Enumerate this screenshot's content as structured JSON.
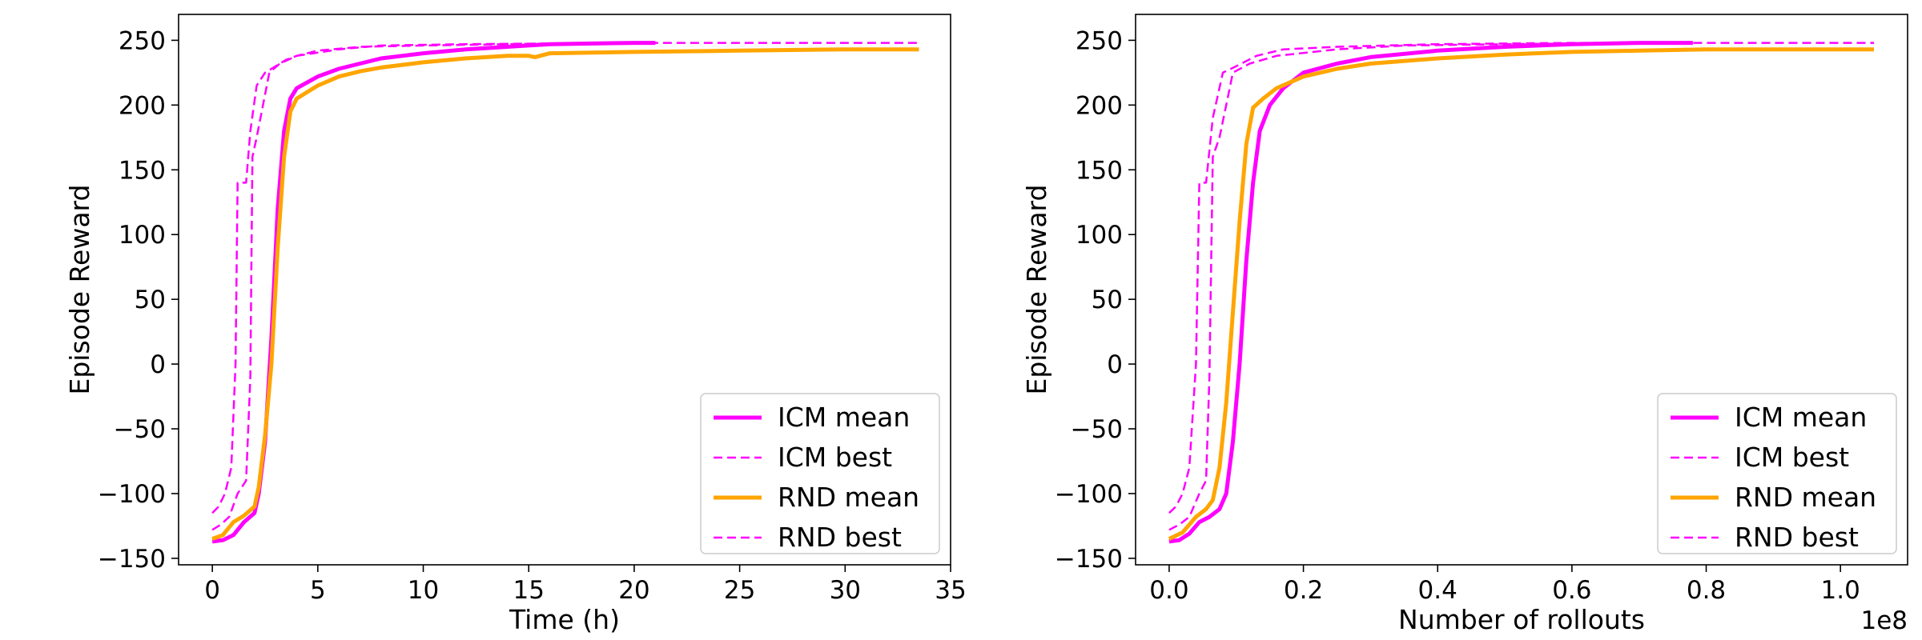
{
  "chart_data": [
    {
      "type": "line",
      "xlabel": "Time (h)",
      "ylabel": "Episode Reward",
      "xlim": [
        -1.6,
        35
      ],
      "ylim": [
        -155,
        270
      ],
      "xticks": [
        0,
        5,
        10,
        15,
        20,
        25,
        30,
        35
      ],
      "xtick_labels": [
        "0",
        "5",
        "10",
        "15",
        "20",
        "25",
        "30",
        "35"
      ],
      "yticks": [
        -150,
        -100,
        -50,
        0,
        50,
        100,
        150,
        200,
        250
      ],
      "ytick_labels": [
        "−150",
        "−100",
        "−50",
        "0",
        "50",
        "100",
        "150",
        "200",
        "250"
      ],
      "x_offset_label": "",
      "grid": false,
      "legend_position": "lower-right",
      "series": [
        {
          "name": "ICM mean",
          "color": "#ff00ff",
          "style": "solid",
          "width": 5,
          "points": [
            [
              0,
              -137
            ],
            [
              0.5,
              -136
            ],
            [
              1,
              -132
            ],
            [
              1.5,
              -122
            ],
            [
              2,
              -115
            ],
            [
              2.2,
              -100
            ],
            [
              2.5,
              -60
            ],
            [
              2.8,
              20
            ],
            [
              3.1,
              120
            ],
            [
              3.4,
              180
            ],
            [
              3.7,
              205
            ],
            [
              4,
              213
            ],
            [
              5,
              222
            ],
            [
              6,
              228
            ],
            [
              7,
              232
            ],
            [
              8,
              236
            ],
            [
              10,
              240
            ],
            [
              12,
              243
            ],
            [
              14,
              245
            ],
            [
              16,
              247
            ],
            [
              18,
              247.5
            ],
            [
              20,
              248
            ],
            [
              21,
              248
            ]
          ]
        },
        {
          "name": "ICM best",
          "color": "#ff00ff",
          "style": "dashed",
          "width": 2.5,
          "points": [
            [
              0,
              -115
            ],
            [
              0.3,
              -110
            ],
            [
              0.6,
              -100
            ],
            [
              0.9,
              -80
            ],
            [
              1.1,
              0
            ],
            [
              1.2,
              140
            ],
            [
              1.6,
              140
            ],
            [
              1.8,
              180
            ],
            [
              2.1,
              215
            ],
            [
              2.5,
              225
            ],
            [
              3,
              230
            ],
            [
              3.5,
              235
            ],
            [
              4,
              238
            ],
            [
              5,
              242
            ],
            [
              7,
              245
            ],
            [
              10,
              246
            ],
            [
              14,
              247
            ],
            [
              18,
              248
            ],
            [
              21,
              248
            ]
          ]
        },
        {
          "name": "RND mean",
          "color": "#ffa500",
          "style": "solid",
          "width": 5,
          "points": [
            [
              0,
              -135
            ],
            [
              0.5,
              -132
            ],
            [
              1,
              -122
            ],
            [
              1.5,
              -117
            ],
            [
              2,
              -110
            ],
            [
              2.2,
              -95
            ],
            [
              2.5,
              -55
            ],
            [
              2.8,
              0
            ],
            [
              3.1,
              90
            ],
            [
              3.4,
              160
            ],
            [
              3.7,
              195
            ],
            [
              4,
              205
            ],
            [
              5,
              215
            ],
            [
              6,
              222
            ],
            [
              7,
              226
            ],
            [
              8,
              229
            ],
            [
              10,
              233
            ],
            [
              12,
              236
            ],
            [
              14,
              238
            ],
            [
              15,
              238
            ],
            [
              15.3,
              237
            ],
            [
              16,
              240
            ],
            [
              20,
              241
            ],
            [
              25,
              242
            ],
            [
              30,
              243
            ],
            [
              33.5,
              243
            ]
          ]
        },
        {
          "name": "RND best",
          "color": "#ff00ff",
          "style": "dashed",
          "width": 2.5,
          "points": [
            [
              0,
              -128
            ],
            [
              0.4,
              -124
            ],
            [
              0.8,
              -118
            ],
            [
              1.2,
              -100
            ],
            [
              1.6,
              -90
            ],
            [
              1.8,
              -10
            ],
            [
              1.9,
              160
            ],
            [
              2.1,
              175
            ],
            [
              2.4,
              200
            ],
            [
              2.7,
              225
            ],
            [
              3.2,
              232
            ],
            [
              4,
              238
            ],
            [
              6,
              243
            ],
            [
              8,
              246
            ],
            [
              12,
              247
            ],
            [
              20,
              248
            ],
            [
              33.5,
              248
            ]
          ]
        }
      ]
    },
    {
      "type": "line",
      "xlabel": "Number of rollouts",
      "ylabel": "Episode Reward",
      "xlim": [
        -0.05,
        1.1
      ],
      "ylim": [
        -155,
        270
      ],
      "xticks": [
        0,
        0.2,
        0.4,
        0.6,
        0.8,
        1.0
      ],
      "xtick_labels": [
        "0.0",
        "0.2",
        "0.4",
        "0.6",
        "0.8",
        "1.0"
      ],
      "yticks": [
        -150,
        -100,
        -50,
        0,
        50,
        100,
        150,
        200,
        250
      ],
      "ytick_labels": [
        "−150",
        "−100",
        "−50",
        "0",
        "50",
        "100",
        "150",
        "200",
        "250"
      ],
      "x_offset_label": "1e8",
      "grid": false,
      "legend_position": "lower-right",
      "series": [
        {
          "name": "ICM mean",
          "color": "#ff00ff",
          "style": "solid",
          "width": 5,
          "points": [
            [
              0,
              -137
            ],
            [
              0.015,
              -136
            ],
            [
              0.03,
              -131
            ],
            [
              0.045,
              -122
            ],
            [
              0.06,
              -118
            ],
            [
              0.075,
              -112
            ],
            [
              0.085,
              -100
            ],
            [
              0.095,
              -60
            ],
            [
              0.105,
              0
            ],
            [
              0.115,
              80
            ],
            [
              0.125,
              140
            ],
            [
              0.135,
              180
            ],
            [
              0.15,
              200
            ],
            [
              0.17,
              213
            ],
            [
              0.2,
              225
            ],
            [
              0.25,
              232
            ],
            [
              0.3,
              237
            ],
            [
              0.4,
              242
            ],
            [
              0.5,
              245
            ],
            [
              0.6,
              247
            ],
            [
              0.7,
              248
            ],
            [
              0.78,
              248
            ]
          ]
        },
        {
          "name": "ICM best",
          "color": "#ff00ff",
          "style": "dashed",
          "width": 2.5,
          "points": [
            [
              0,
              -115
            ],
            [
              0.01,
              -110
            ],
            [
              0.02,
              -100
            ],
            [
              0.03,
              -80
            ],
            [
              0.04,
              0
            ],
            [
              0.045,
              140
            ],
            [
              0.055,
              140
            ],
            [
              0.065,
              190
            ],
            [
              0.08,
              225
            ],
            [
              0.1,
              230
            ],
            [
              0.13,
              238
            ],
            [
              0.17,
              243
            ],
            [
              0.25,
              245
            ],
            [
              0.4,
              247
            ],
            [
              0.6,
              248
            ],
            [
              0.78,
              248
            ]
          ]
        },
        {
          "name": "RND mean",
          "color": "#ffa500",
          "style": "solid",
          "width": 5,
          "points": [
            [
              0,
              -135
            ],
            [
              0.02,
              -130
            ],
            [
              0.04,
              -118
            ],
            [
              0.055,
              -112
            ],
            [
              0.065,
              -105
            ],
            [
              0.075,
              -80
            ],
            [
              0.085,
              -30
            ],
            [
              0.095,
              40
            ],
            [
              0.105,
              110
            ],
            [
              0.115,
              170
            ],
            [
              0.125,
              198
            ],
            [
              0.14,
              205
            ],
            [
              0.16,
              213
            ],
            [
              0.2,
              222
            ],
            [
              0.25,
              228
            ],
            [
              0.3,
              232
            ],
            [
              0.4,
              236
            ],
            [
              0.5,
              239
            ],
            [
              0.6,
              241
            ],
            [
              0.7,
              242
            ],
            [
              0.8,
              243
            ],
            [
              0.9,
              243
            ],
            [
              1.05,
              243
            ]
          ]
        },
        {
          "name": "RND best",
          "color": "#ff00ff",
          "style": "dashed",
          "width": 2.5,
          "points": [
            [
              0,
              -128
            ],
            [
              0.015,
              -124
            ],
            [
              0.03,
              -118
            ],
            [
              0.045,
              -100
            ],
            [
              0.055,
              -90
            ],
            [
              0.06,
              -10
            ],
            [
              0.065,
              160
            ],
            [
              0.075,
              175
            ],
            [
              0.085,
              200
            ],
            [
              0.095,
              225
            ],
            [
              0.12,
              232
            ],
            [
              0.16,
              238
            ],
            [
              0.25,
              243
            ],
            [
              0.35,
              246
            ],
            [
              0.5,
              247
            ],
            [
              0.7,
              248
            ],
            [
              1.05,
              248
            ]
          ]
        }
      ]
    }
  ]
}
